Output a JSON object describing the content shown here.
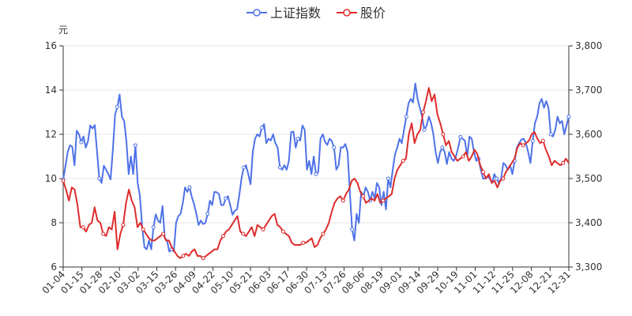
{
  "chart_data": {
    "type": "line",
    "left_unit": "元",
    "x_ticks": [
      "01-04",
      "01-15",
      "01-28",
      "02-10",
      "03-02",
      "03-15",
      "03-26",
      "04-09",
      "04-22",
      "05-10",
      "05-21",
      "06-03",
      "06-17",
      "06-30",
      "07-13",
      "07-26",
      "08-06",
      "08-19",
      "09-01",
      "09-14",
      "09-29",
      "10-19",
      "11-01",
      "11-12",
      "11-25",
      "12-08",
      "12-21",
      "12-31"
    ],
    "left_axis": {
      "min": 6,
      "max": 16,
      "ticks": [
        6,
        8,
        10,
        12,
        14,
        16
      ]
    },
    "right_axis": {
      "min": 3300,
      "max": 3800,
      "ticks": [
        "3,300",
        "3,400",
        "3,500",
        "3,600",
        "3,700",
        "3,800"
      ]
    },
    "series": [
      {
        "name": "上证指数",
        "axis": "right",
        "color": "#4e72e8",
        "values": [
          3498,
          3528,
          3560,
          3575,
          3572,
          3530,
          3608,
          3600,
          3582,
          3595,
          3570,
          3585,
          3620,
          3613,
          3621,
          3560,
          3500,
          3490,
          3529,
          3520,
          3510,
          3498,
          3565,
          3645,
          3662,
          3690,
          3640,
          3630,
          3585,
          3510,
          3550,
          3510,
          3575,
          3490,
          3460,
          3390,
          3345,
          3340,
          3360,
          3340,
          3390,
          3419,
          3405,
          3400,
          3438,
          3365,
          3360,
          3335,
          3340,
          3335,
          3400,
          3415,
          3420,
          3445,
          3480,
          3470,
          3480,
          3458,
          3442,
          3420,
          3395,
          3405,
          3397,
          3400,
          3420,
          3450,
          3440,
          3470,
          3469,
          3465,
          3440,
          3440,
          3455,
          3460,
          3440,
          3418,
          3427,
          3430,
          3462,
          3500,
          3525,
          3530,
          3510,
          3487,
          3560,
          3590,
          3600,
          3595,
          3615,
          3623,
          3580,
          3590,
          3586,
          3600,
          3580,
          3570,
          3525,
          3520,
          3530,
          3520,
          3540,
          3605,
          3606,
          3570,
          3590,
          3586,
          3620,
          3610,
          3520,
          3540,
          3510,
          3550,
          3510,
          3515,
          3590,
          3600,
          3583,
          3576,
          3590,
          3585,
          3570,
          3520,
          3530,
          3571,
          3570,
          3578,
          3560,
          3470,
          3385,
          3360,
          3420,
          3400,
          3470,
          3460,
          3480,
          3470,
          3450,
          3470,
          3455,
          3490,
          3480,
          3440,
          3470,
          3430,
          3500,
          3480,
          3520,
          3555,
          3570,
          3590,
          3580,
          3610,
          3640,
          3670,
          3680,
          3672,
          3715,
          3680,
          3660,
          3640,
          3610,
          3620,
          3640,
          3625,
          3600,
          3560,
          3535,
          3560,
          3570,
          3560,
          3533,
          3560,
          3545,
          3540,
          3550,
          3570,
          3594,
          3590,
          3585,
          3550,
          3595,
          3590,
          3560,
          3540,
          3545,
          3520,
          3500,
          3500,
          3505,
          3500,
          3490,
          3510,
          3500,
          3490,
          3500,
          3535,
          3530,
          3520,
          3530,
          3510,
          3540,
          3570,
          3580,
          3588,
          3590,
          3580,
          3560,
          3535,
          3585,
          3625,
          3640,
          3670,
          3680,
          3660,
          3675,
          3660,
          3600,
          3595,
          3610,
          3640,
          3625,
          3630,
          3600,
          3620,
          3640
        ]
      },
      {
        "name": "股价",
        "axis": "left",
        "color": "#dd2c2c",
        "values": [
          9.9,
          9.5,
          9.0,
          9.6,
          9.5,
          8.8,
          7.8,
          7.8,
          7.6,
          7.9,
          8.0,
          8.7,
          8.1,
          8.0,
          7.5,
          7.4,
          7.8,
          7.7,
          8.5,
          6.8,
          7.5,
          7.9,
          8.9,
          9.5,
          9.0,
          8.7,
          7.8,
          8.0,
          7.7,
          7.5,
          7.3,
          7.2,
          7.2,
          7.3,
          7.4,
          7.5,
          7.2,
          7.2,
          6.9,
          6.7,
          6.5,
          6.4,
          6.5,
          6.6,
          6.5,
          6.7,
          6.8,
          6.5,
          6.5,
          6.4,
          6.5,
          6.6,
          6.7,
          6.8,
          6.8,
          7.2,
          7.4,
          7.6,
          7.7,
          7.9,
          8.1,
          8.3,
          7.6,
          7.5,
          7.4,
          7.6,
          7.8,
          7.4,
          7.9,
          7.8,
          7.7,
          7.9,
          8.1,
          8.3,
          8.4,
          7.9,
          7.8,
          7.6,
          7.5,
          7.4,
          7.1,
          7.0,
          7.0,
          7.0,
          7.1,
          7.1,
          7.2,
          7.3,
          6.9,
          7.0,
          7.3,
          7.5,
          7.7,
          8.0,
          8.5,
          8.9,
          9.1,
          9.2,
          9.0,
          9.3,
          9.5,
          9.9,
          10.0,
          9.8,
          9.4,
          9.2,
          8.9,
          9.0,
          9.1,
          9.0,
          9.3,
          8.9,
          9.0,
          9.1,
          9.2,
          9.3,
          10.0,
          10.4,
          10.6,
          10.8,
          10.9,
          12.0,
          12.5,
          11.6,
          12.0,
          12.2,
          13.0,
          13.5,
          14.1,
          13.5,
          13.8,
          12.9,
          12.5,
          12.0,
          11.5,
          11.7,
          11.2,
          11.0,
          10.8,
          10.9,
          11.0,
          11.2,
          10.8,
          11.0,
          11.3,
          11.1,
          10.6,
          10.3,
          10.0,
          10.2,
          9.8,
          9.9,
          9.6,
          9.9,
          10.0,
          10.3,
          10.5,
          10.7,
          10.9,
          11.4,
          11.6,
          11.5,
          11.6,
          11.7,
          12.0,
          12.1,
          11.8,
          11.6,
          11.7,
          11.3,
          11.0,
          10.6,
          10.8,
          10.7,
          10.6,
          10.7,
          10.9,
          10.7
        ]
      }
    ]
  }
}
